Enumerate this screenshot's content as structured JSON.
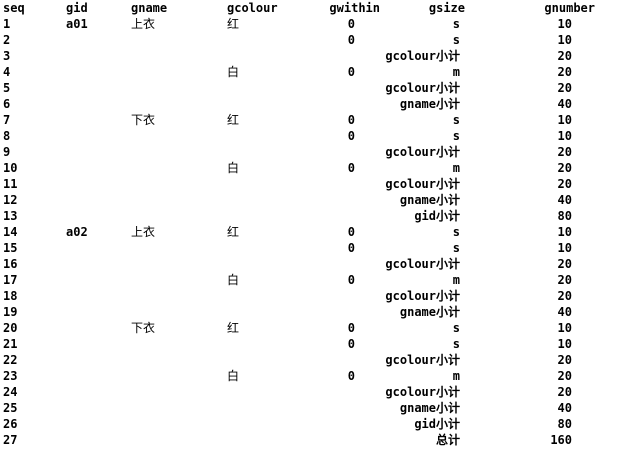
{
  "columns": [
    "seq",
    "gid",
    "gname",
    "gcolour",
    "gwithin",
    "gsize",
    "gnumber"
  ],
  "rows": [
    {
      "seq": "1",
      "gid": "a01",
      "gname": "上衣",
      "gcolour": "红",
      "gwithin": "0",
      "gsize": "s",
      "gnumber": "10"
    },
    {
      "seq": "2",
      "gid": "",
      "gname": "",
      "gcolour": "",
      "gwithin": "0",
      "gsize": "s",
      "gnumber": "10"
    },
    {
      "seq": "3",
      "gid": "",
      "gname": "",
      "gcolour": "",
      "gwithin": "",
      "gsize": "gcolour小计",
      "gnumber": "20"
    },
    {
      "seq": "4",
      "gid": "",
      "gname": "",
      "gcolour": "白",
      "gwithin": "0",
      "gsize": "m",
      "gnumber": "20"
    },
    {
      "seq": "5",
      "gid": "",
      "gname": "",
      "gcolour": "",
      "gwithin": "",
      "gsize": "gcolour小计",
      "gnumber": "20"
    },
    {
      "seq": "6",
      "gid": "",
      "gname": "",
      "gcolour": "",
      "gwithin": "",
      "gsize": "gname小计",
      "gnumber": "40"
    },
    {
      "seq": "7",
      "gid": "",
      "gname": "下衣",
      "gcolour": "红",
      "gwithin": "0",
      "gsize": "s",
      "gnumber": "10"
    },
    {
      "seq": "8",
      "gid": "",
      "gname": "",
      "gcolour": "",
      "gwithin": "0",
      "gsize": "s",
      "gnumber": "10"
    },
    {
      "seq": "9",
      "gid": "",
      "gname": "",
      "gcolour": "",
      "gwithin": "",
      "gsize": "gcolour小计",
      "gnumber": "20"
    },
    {
      "seq": "10",
      "gid": "",
      "gname": "",
      "gcolour": "白",
      "gwithin": "0",
      "gsize": "m",
      "gnumber": "20"
    },
    {
      "seq": "11",
      "gid": "",
      "gname": "",
      "gcolour": "",
      "gwithin": "",
      "gsize": "gcolour小计",
      "gnumber": "20"
    },
    {
      "seq": "12",
      "gid": "",
      "gname": "",
      "gcolour": "",
      "gwithin": "",
      "gsize": "gname小计",
      "gnumber": "40"
    },
    {
      "seq": "13",
      "gid": "",
      "gname": "",
      "gcolour": "",
      "gwithin": "",
      "gsize": "gid小计",
      "gnumber": "80"
    },
    {
      "seq": "14",
      "gid": "a02",
      "gname": "上衣",
      "gcolour": "红",
      "gwithin": "0",
      "gsize": "s",
      "gnumber": "10"
    },
    {
      "seq": "15",
      "gid": "",
      "gname": "",
      "gcolour": "",
      "gwithin": "0",
      "gsize": "s",
      "gnumber": "10"
    },
    {
      "seq": "16",
      "gid": "",
      "gname": "",
      "gcolour": "",
      "gwithin": "",
      "gsize": "gcolour小计",
      "gnumber": "20"
    },
    {
      "seq": "17",
      "gid": "",
      "gname": "",
      "gcolour": "白",
      "gwithin": "0",
      "gsize": "m",
      "gnumber": "20"
    },
    {
      "seq": "18",
      "gid": "",
      "gname": "",
      "gcolour": "",
      "gwithin": "",
      "gsize": "gcolour小计",
      "gnumber": "20"
    },
    {
      "seq": "19",
      "gid": "",
      "gname": "",
      "gcolour": "",
      "gwithin": "",
      "gsize": "gname小计",
      "gnumber": "40"
    },
    {
      "seq": "20",
      "gid": "",
      "gname": "下衣",
      "gcolour": "红",
      "gwithin": "0",
      "gsize": "s",
      "gnumber": "10"
    },
    {
      "seq": "21",
      "gid": "",
      "gname": "",
      "gcolour": "",
      "gwithin": "0",
      "gsize": "s",
      "gnumber": "10"
    },
    {
      "seq": "22",
      "gid": "",
      "gname": "",
      "gcolour": "",
      "gwithin": "",
      "gsize": "gcolour小计",
      "gnumber": "20"
    },
    {
      "seq": "23",
      "gid": "",
      "gname": "",
      "gcolour": "白",
      "gwithin": "0",
      "gsize": "m",
      "gnumber": "20"
    },
    {
      "seq": "24",
      "gid": "",
      "gname": "",
      "gcolour": "",
      "gwithin": "",
      "gsize": "gcolour小计",
      "gnumber": "20"
    },
    {
      "seq": "25",
      "gid": "",
      "gname": "",
      "gcolour": "",
      "gwithin": "",
      "gsize": "gname小计",
      "gnumber": "40"
    },
    {
      "seq": "26",
      "gid": "",
      "gname": "",
      "gcolour": "",
      "gwithin": "",
      "gsize": "gid小计",
      "gnumber": "80"
    },
    {
      "seq": "27",
      "gid": "",
      "gname": "",
      "gcolour": "",
      "gwithin": "",
      "gsize": "总计",
      "gnumber": "160"
    }
  ]
}
